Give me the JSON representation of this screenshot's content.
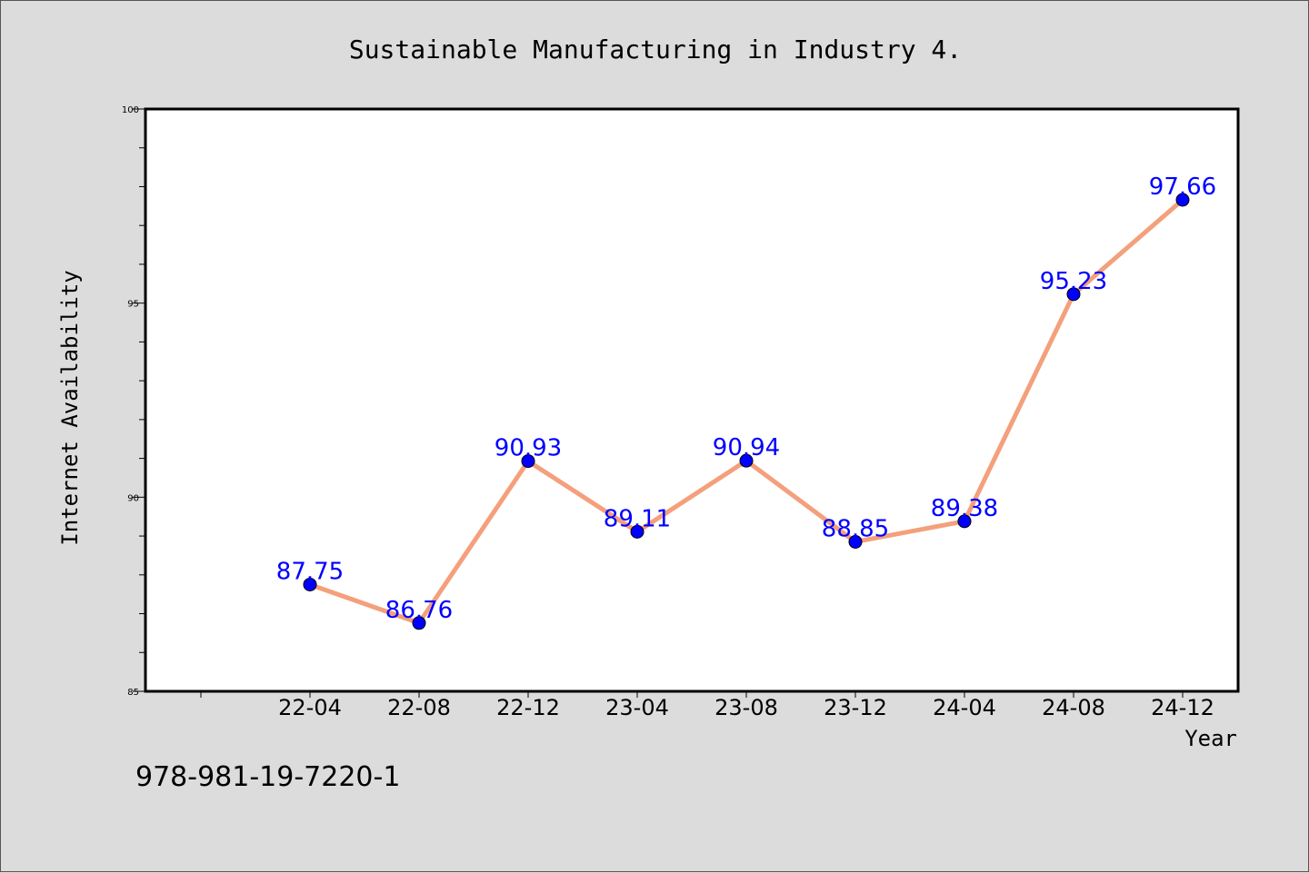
{
  "chart_data": {
    "type": "line",
    "title": "Sustainable Manufacturing in Industry 4.",
    "xlabel": "Year",
    "ylabel": "Internet Availability",
    "categories": [
      "22-04",
      "22-08",
      "22-12",
      "23-04",
      "23-08",
      "23-12",
      "24-04",
      "24-08",
      "24-12"
    ],
    "series": [
      {
        "values": [
          87.75,
          86.76,
          90.93,
          89.11,
          90.94,
          88.85,
          89.38,
          95.23,
          97.66
        ]
      }
    ],
    "data_labels": [
      "87.75",
      "86.76",
      "90.93",
      "89.11",
      "90.94",
      "88.85",
      "89.38",
      "95.23",
      "97.66"
    ],
    "ylim": [
      85,
      100
    ],
    "y_ticks": [
      "85",
      "90",
      "95",
      "100"
    ],
    "grid": false,
    "line_color": "#f4a07c",
    "marker_color": "#0000ff",
    "label_color": "#0000ff"
  },
  "footer": {
    "isbn": "978-981-19-7220-1"
  }
}
